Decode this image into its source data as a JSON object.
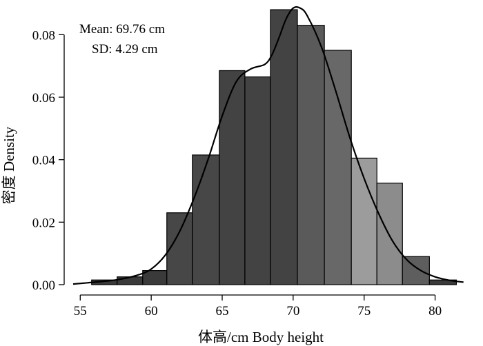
{
  "chart_data": {
    "type": "bar",
    "subtype": "histogram-with-density-curve",
    "xlabel": "体高/cm  Body height",
    "ylabel": "密度 Density",
    "xlim": [
      54.5,
      82.5
    ],
    "ylim": [
      0,
      0.09
    ],
    "x_ticks": [
      55,
      60,
      65,
      70,
      75,
      80
    ],
    "y_ticks": [
      0.0,
      0.02,
      0.04,
      0.06,
      0.08
    ],
    "y_tick_labels": [
      "0.00",
      "0.02",
      "0.04",
      "0.06",
      "0.08"
    ],
    "annotations": [
      "Mean: 69.76 cm",
      "SD: 4.29 cm"
    ],
    "bins": [
      {
        "x0": 55.8,
        "x1": 57.6,
        "density": 0.0015,
        "color": "#3a3a3a"
      },
      {
        "x0": 57.6,
        "x1": 59.4,
        "density": 0.0025,
        "color": "#3a3a3a"
      },
      {
        "x0": 59.4,
        "x1": 61.1,
        "density": 0.0045,
        "color": "#3a3a3a"
      },
      {
        "x0": 61.1,
        "x1": 62.9,
        "density": 0.023,
        "color": "#474747"
      },
      {
        "x0": 62.9,
        "x1": 64.8,
        "density": 0.0415,
        "color": "#474747"
      },
      {
        "x0": 64.8,
        "x1": 66.6,
        "density": 0.0685,
        "color": "#434343"
      },
      {
        "x0": 66.6,
        "x1": 68.4,
        "density": 0.0665,
        "color": "#434343"
      },
      {
        "x0": 68.4,
        "x1": 70.3,
        "density": 0.088,
        "color": "#434343"
      },
      {
        "x0": 70.3,
        "x1": 72.2,
        "density": 0.083,
        "color": "#5a5a5a"
      },
      {
        "x0": 72.2,
        "x1": 74.1,
        "density": 0.075,
        "color": "#686868"
      },
      {
        "x0": 74.1,
        "x1": 75.9,
        "density": 0.0405,
        "color": "#9c9c9c"
      },
      {
        "x0": 75.9,
        "x1": 77.7,
        "density": 0.0325,
        "color": "#8c8c8c"
      },
      {
        "x0": 77.7,
        "x1": 79.6,
        "density": 0.009,
        "color": "#5e5e5e"
      },
      {
        "x0": 79.6,
        "x1": 81.5,
        "density": 0.0015,
        "color": "#3a3a3a"
      }
    ],
    "density_curve": {
      "x": [
        54.5,
        56,
        57.5,
        59,
        60,
        61,
        62,
        63,
        64,
        65,
        66,
        67,
        68,
        68.5,
        69,
        69.5,
        70,
        70.5,
        71,
        72,
        73,
        74,
        75,
        76,
        77,
        78,
        79,
        80,
        81,
        82
      ],
      "y": [
        0.0002,
        0.0008,
        0.0015,
        0.003,
        0.005,
        0.0095,
        0.017,
        0.0275,
        0.04,
        0.054,
        0.065,
        0.069,
        0.0705,
        0.0735,
        0.079,
        0.085,
        0.0885,
        0.0885,
        0.086,
        0.076,
        0.062,
        0.047,
        0.034,
        0.023,
        0.014,
        0.008,
        0.0045,
        0.0025,
        0.0014,
        0.0008
      ]
    },
    "grid": false,
    "legend": "none"
  }
}
